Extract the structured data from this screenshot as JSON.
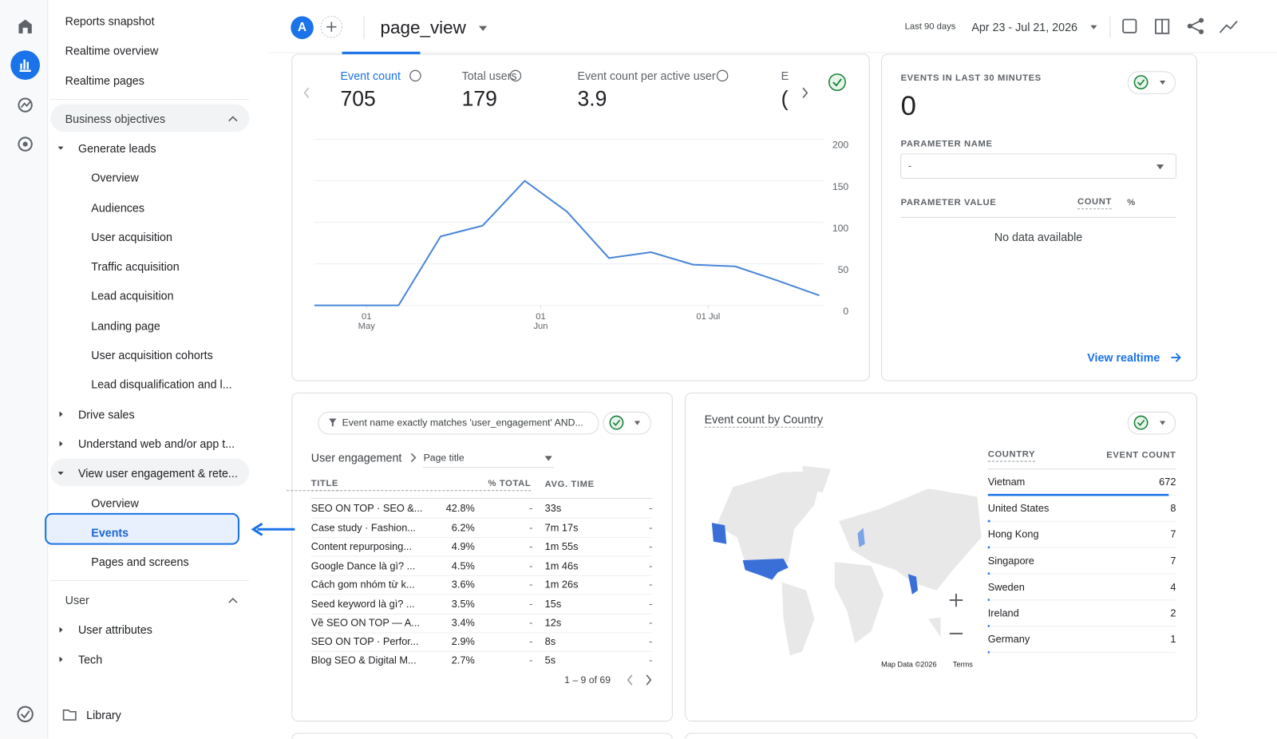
{
  "top_bar": {
    "avatar": "A",
    "event_name": "page_view",
    "date_range_label": "Last 90 days",
    "date_range": "Apr 23 - Jul 21, 2026"
  },
  "sidebar": {
    "links": [
      "Reports snapshot",
      "Realtime overview",
      "Realtime pages"
    ],
    "sections": [
      {
        "title": "Business objectives",
        "groups": [
          {
            "label": "Generate leads",
            "items": [
              "Overview",
              "Audiences",
              "User acquisition",
              "Traffic acquisition",
              "Lead acquisition",
              "Landing page",
              "User acquisition cohorts",
              "Lead disqualification and l..."
            ]
          },
          {
            "label": "Drive sales"
          },
          {
            "label": "Understand web and/or app t..."
          },
          {
            "label": "View user engagement & rete...",
            "items": [
              "Overview",
              "Events",
              "Pages and screens"
            ]
          }
        ]
      },
      {
        "title": "User",
        "groups": [
          {
            "label": "User attributes"
          },
          {
            "label": "Tech"
          }
        ]
      }
    ],
    "library": "Library"
  },
  "metrics": [
    {
      "label": "Event count",
      "value": 705
    },
    {
      "label": "Total users",
      "value": 179
    },
    {
      "label": "Event count per active user",
      "value": 3.9
    },
    {
      "label": "E",
      "value": "("
    }
  ],
  "chart_data": {
    "type": "line",
    "categories": [
      null,
      null,
      null,
      null,
      null,
      null,
      null,
      null,
      null,
      null,
      null,
      null,
      null
    ],
    "series": [
      {
        "color": "#4a86d8",
        "values": [
          0,
          0,
          0,
          83,
          96,
          150,
          113,
          57,
          64,
          49,
          47,
          30,
          12
        ]
      }
    ],
    "xticks": [
      {
        "value": 1.24,
        "label": "01 May"
      },
      {
        "value": 5.38,
        "label": "01 Jun"
      },
      {
        "value": 9.36,
        "label": "01 Jul"
      }
    ],
    "ylim": [
      0,
      200
    ],
    "yticks": [
      0,
      50,
      100,
      150,
      200
    ],
    "grid": true
  },
  "realtime": {
    "title": "EVENTS IN LAST 30 MINUTES",
    "value": 0,
    "parameter_name_label": "PARAMETER NAME",
    "parameter_name_value": "-",
    "columns": [
      "PARAMETER VALUE",
      "COUNT",
      "%"
    ],
    "empty": "No data available",
    "link": "View realtime"
  },
  "events_table": {
    "filter": "Event name exactly matches 'user_engagement' AND...",
    "breadcrumb": [
      "User engagement",
      "Page title"
    ],
    "columns": [
      "TITLE",
      "% TOTAL",
      "AVG. TIME"
    ],
    "rows": [
      [
        "SEO ON TOP · SEO &...",
        "42.8%",
        "-",
        "33s",
        "-"
      ],
      [
        "Case study · Fashion...",
        "6.2%",
        "-",
        "7m 17s",
        "-"
      ],
      [
        "Content repurposing...",
        "4.9%",
        "-",
        "1m 55s",
        "-"
      ],
      [
        "Google Dance là gì? ...",
        "4.5%",
        "-",
        "1m 46s",
        "-"
      ],
      [
        "Cách gom nhóm từ k...",
        "3.6%",
        "-",
        "1m 26s",
        "-"
      ],
      [
        "Seed keyword là gì? ...",
        "3.5%",
        "-",
        "15s",
        "-"
      ],
      [
        "Về SEO ON TOP — A...",
        "3.4%",
        "-",
        "12s",
        "-"
      ],
      [
        "SEO ON TOP · Perfor...",
        "2.9%",
        "-",
        "8s",
        "-"
      ],
      [
        "Blog SEO & Digital M...",
        "2.7%",
        "-",
        "5s",
        "-"
      ]
    ],
    "pagination": "1 – 9 of 69"
  },
  "country_card": {
    "title": "Event count by Country",
    "columns": [
      "COUNTRY",
      "EVENT COUNT"
    ],
    "rows": [
      {
        "country": "Vietnam",
        "count": 672
      },
      {
        "country": "United States",
        "count": 8
      },
      {
        "country": "Hong Kong",
        "count": 7
      },
      {
        "country": "Singapore",
        "count": 7
      },
      {
        "country": "Sweden",
        "count": 4
      },
      {
        "country": "Ireland",
        "count": 2
      },
      {
        "country": "Germany",
        "count": 1
      }
    ],
    "map_attribution": "Map Data ©2026",
    "terms": "Terms"
  }
}
